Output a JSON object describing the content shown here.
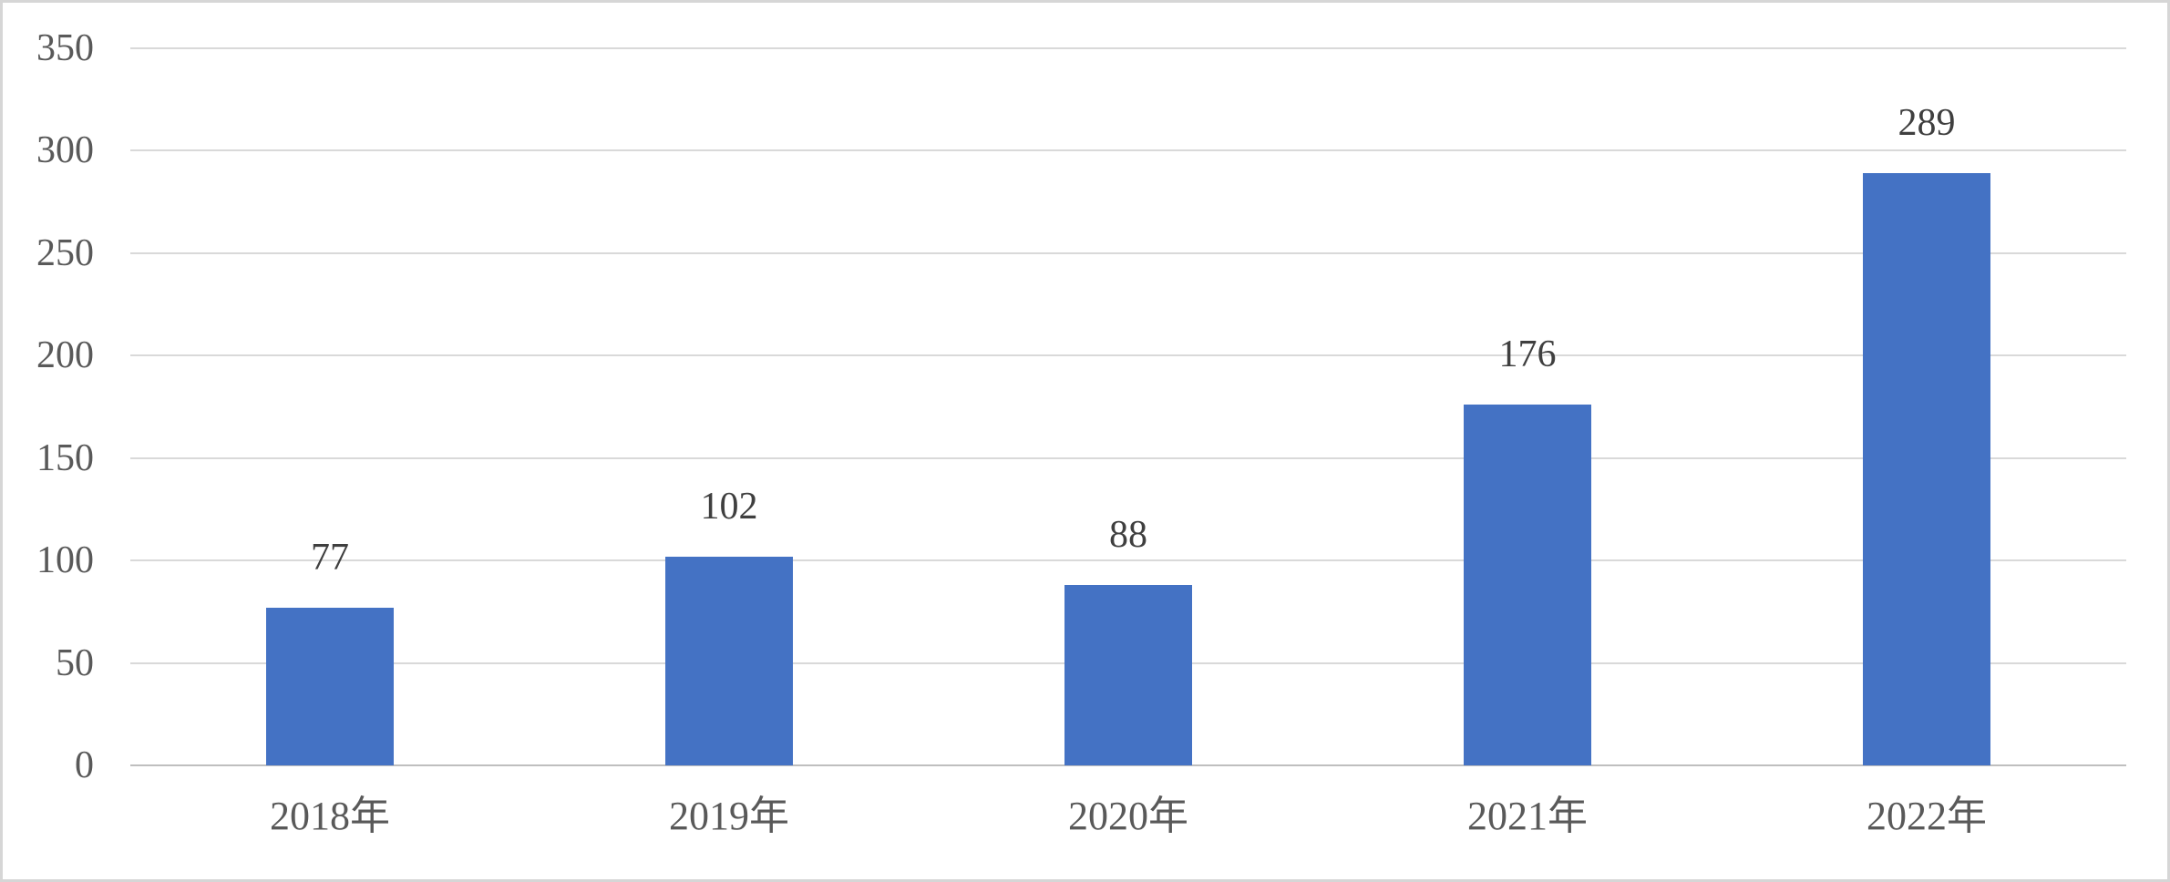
{
  "chart_data": {
    "type": "bar",
    "categories": [
      "2018年",
      "2019年",
      "2020年",
      "2021年",
      "2022年"
    ],
    "values": [
      77,
      102,
      88,
      176,
      289
    ],
    "data_labels": [
      "77",
      "102",
      "88",
      "176",
      "289"
    ],
    "title": "",
    "xlabel": "",
    "ylabel": "",
    "ylim": [
      0,
      350
    ],
    "y_ticks": [
      0,
      50,
      100,
      150,
      200,
      250,
      300,
      350
    ],
    "y_tick_labels": [
      "0",
      "50",
      "100",
      "150",
      "200",
      "250",
      "300",
      "350"
    ],
    "grid": true,
    "legend_position": "none",
    "colors": {
      "bar": "#4472C4",
      "gridline": "#D9D9D9",
      "axis_line": "#BFBFBF",
      "tick_label": "#595959",
      "data_label": "#3F3F3F",
      "background": "#FFFFFF",
      "frame_border": "#D6D6D6"
    }
  }
}
